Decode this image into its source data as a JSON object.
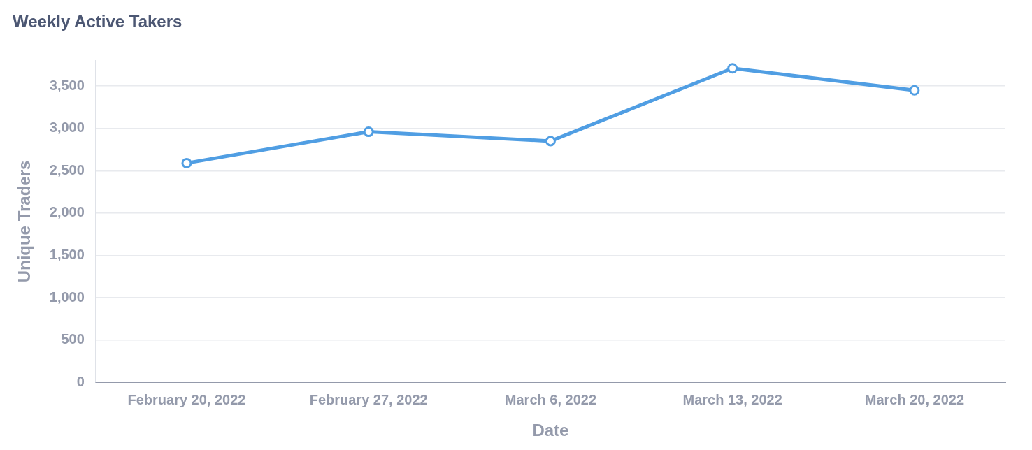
{
  "chart_data": {
    "type": "line",
    "title": "Weekly Active Takers",
    "xlabel": "Date",
    "ylabel": "Unique Traders",
    "categories": [
      "February 20, 2022",
      "February 27, 2022",
      "March 6, 2022",
      "March 13, 2022",
      "March 20, 2022"
    ],
    "series": [
      {
        "color": "#509ee3",
        "values": [
          2590,
          2960,
          2850,
          3710,
          3450
        ]
      }
    ],
    "yticks": [
      {
        "value": 0,
        "label": "0"
      },
      {
        "value": 500,
        "label": "500"
      },
      {
        "value": 1000,
        "label": "1,000"
      },
      {
        "value": 1500,
        "label": "1,500"
      },
      {
        "value": 2000,
        "label": "2,000"
      },
      {
        "value": 2500,
        "label": "2,500"
      },
      {
        "value": 3000,
        "label": "3,000"
      },
      {
        "value": 3500,
        "label": "3,500"
      }
    ],
    "ylim": [
      0,
      3800
    ],
    "grid": "y",
    "legend": false,
    "marker": "circle",
    "line_style": "solid"
  }
}
